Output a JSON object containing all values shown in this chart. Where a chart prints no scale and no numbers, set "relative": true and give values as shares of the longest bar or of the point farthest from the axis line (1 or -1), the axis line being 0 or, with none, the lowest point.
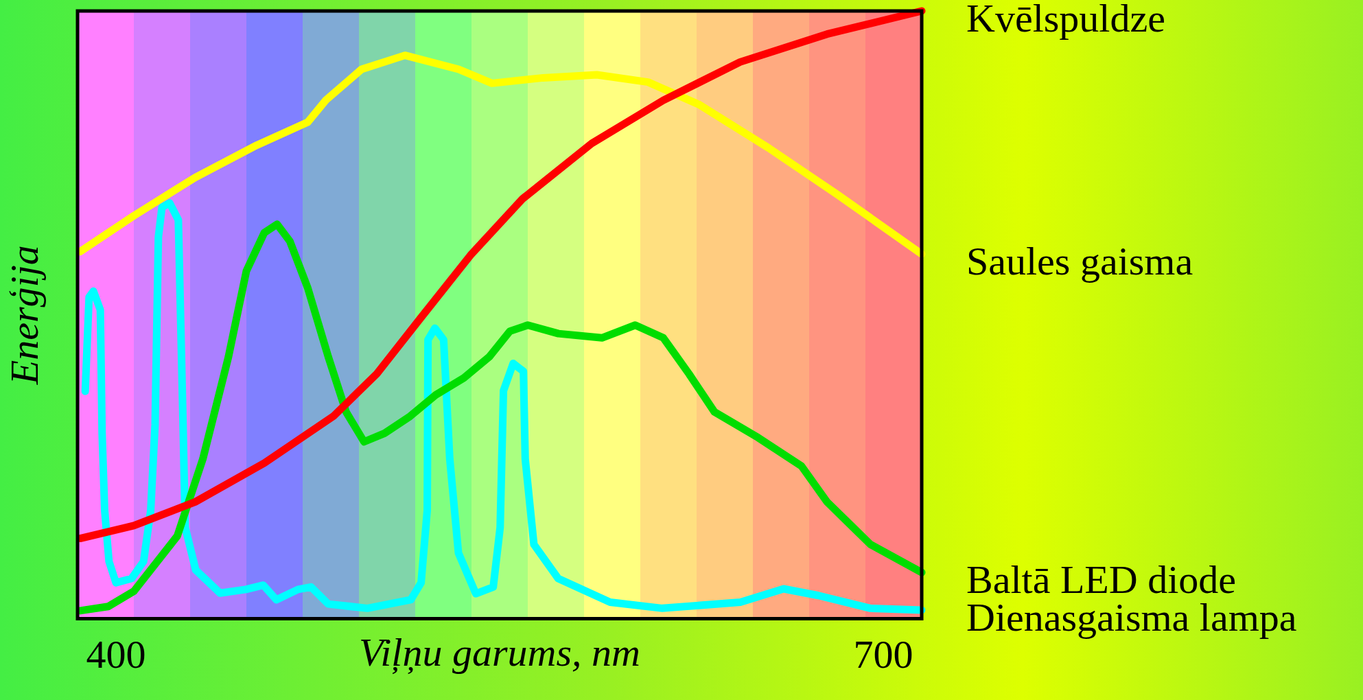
{
  "chart_data": {
    "type": "line",
    "relative": true,
    "xlabel": "Viļņu garums, nm",
    "ylabel": "Enerģija",
    "xlim": [
      385,
      715
    ],
    "xticks": [
      400,
      700
    ],
    "grid": false,
    "series": [
      {
        "name": "Kvēlspuldze",
        "color": "#ff0000",
        "x": [
          386,
          407,
          431,
          458,
          485,
          502,
          519,
          539,
          559,
          586,
          614,
          644,
          678,
          715
        ],
        "values": [
          0.132,
          0.153,
          0.192,
          0.256,
          0.333,
          0.403,
          0.494,
          0.6,
          0.691,
          0.782,
          0.853,
          0.916,
          0.962,
          1
        ]
      },
      {
        "name": "Saules gaisma",
        "color": "#ffff00",
        "x": [
          386,
          407,
          431,
          455,
          475,
          482,
          496,
          513,
          534,
          547,
          567,
          588,
          608,
          628,
          655,
          682,
          715
        ],
        "values": [
          0.604,
          0.663,
          0.726,
          0.779,
          0.817,
          0.853,
          0.904,
          0.927,
          0.904,
          0.881,
          0.89,
          0.895,
          0.883,
          0.846,
          0.775,
          0.698,
          0.6
        ]
      },
      {
        "name": "Baltā LED diode",
        "color": "#00dd00",
        "x": [
          386,
          397,
          407,
          424,
          434,
          444,
          451,
          458,
          463,
          468,
          475,
          483,
          490,
          497,
          505,
          515,
          525,
          536,
          546,
          554,
          561,
          573,
          590,
          603,
          614,
          624,
          634,
          651,
          668,
          678,
          695,
          715
        ],
        "values": [
          0.013,
          0.02,
          0.045,
          0.136,
          0.263,
          0.431,
          0.572,
          0.635,
          0.649,
          0.621,
          0.544,
          0.431,
          0.34,
          0.291,
          0.305,
          0.333,
          0.368,
          0.396,
          0.431,
          0.473,
          0.483,
          0.469,
          0.462,
          0.483,
          0.462,
          0.403,
          0.34,
          0.298,
          0.251,
          0.192,
          0.122,
          0.076
        ]
      },
      {
        "name": "Dienasgaisma lampa",
        "color": "#00ffff",
        "x": [
          388,
          389.5,
          391.2,
          393.9,
          394.6,
          395.6,
          397.3,
          400,
          406.1,
          410.8,
          413.6,
          415.3,
          416.6,
          418,
          421,
          424.4,
          426.1,
          427.1,
          431.2,
          440.7,
          450.8,
          457.6,
          462.7,
          471.2,
          476.3,
          483,
          498.3,
          515.3,
          519.3,
          521.7,
          522,
          524.7,
          528.1,
          530.5,
          533.9,
          540.7,
          547.5,
          550.2,
          551.5,
          555.3,
          559.3,
          560,
          563.4,
          572.9,
          593.2,
          613.6,
          644.1,
          661,
          674.6,
          694.9,
          715
        ],
        "values": [
          0.374,
          0.529,
          0.539,
          0.508,
          0.305,
          0.178,
          0.094,
          0.059,
          0.066,
          0.094,
          0.178,
          0.319,
          0.628,
          0.677,
          0.684,
          0.656,
          0.347,
          0.15,
          0.08,
          0.042,
          0.048,
          0.055,
          0.031,
          0.048,
          0.052,
          0.024,
          0.017,
          0.031,
          0.059,
          0.178,
          0.459,
          0.478,
          0.459,
          0.263,
          0.108,
          0.041,
          0.052,
          0.15,
          0.375,
          0.42,
          0.407,
          0.263,
          0.122,
          0.066,
          0.027,
          0.017,
          0.027,
          0.049,
          0.038,
          0.017,
          0.014
        ]
      }
    ]
  }
}
